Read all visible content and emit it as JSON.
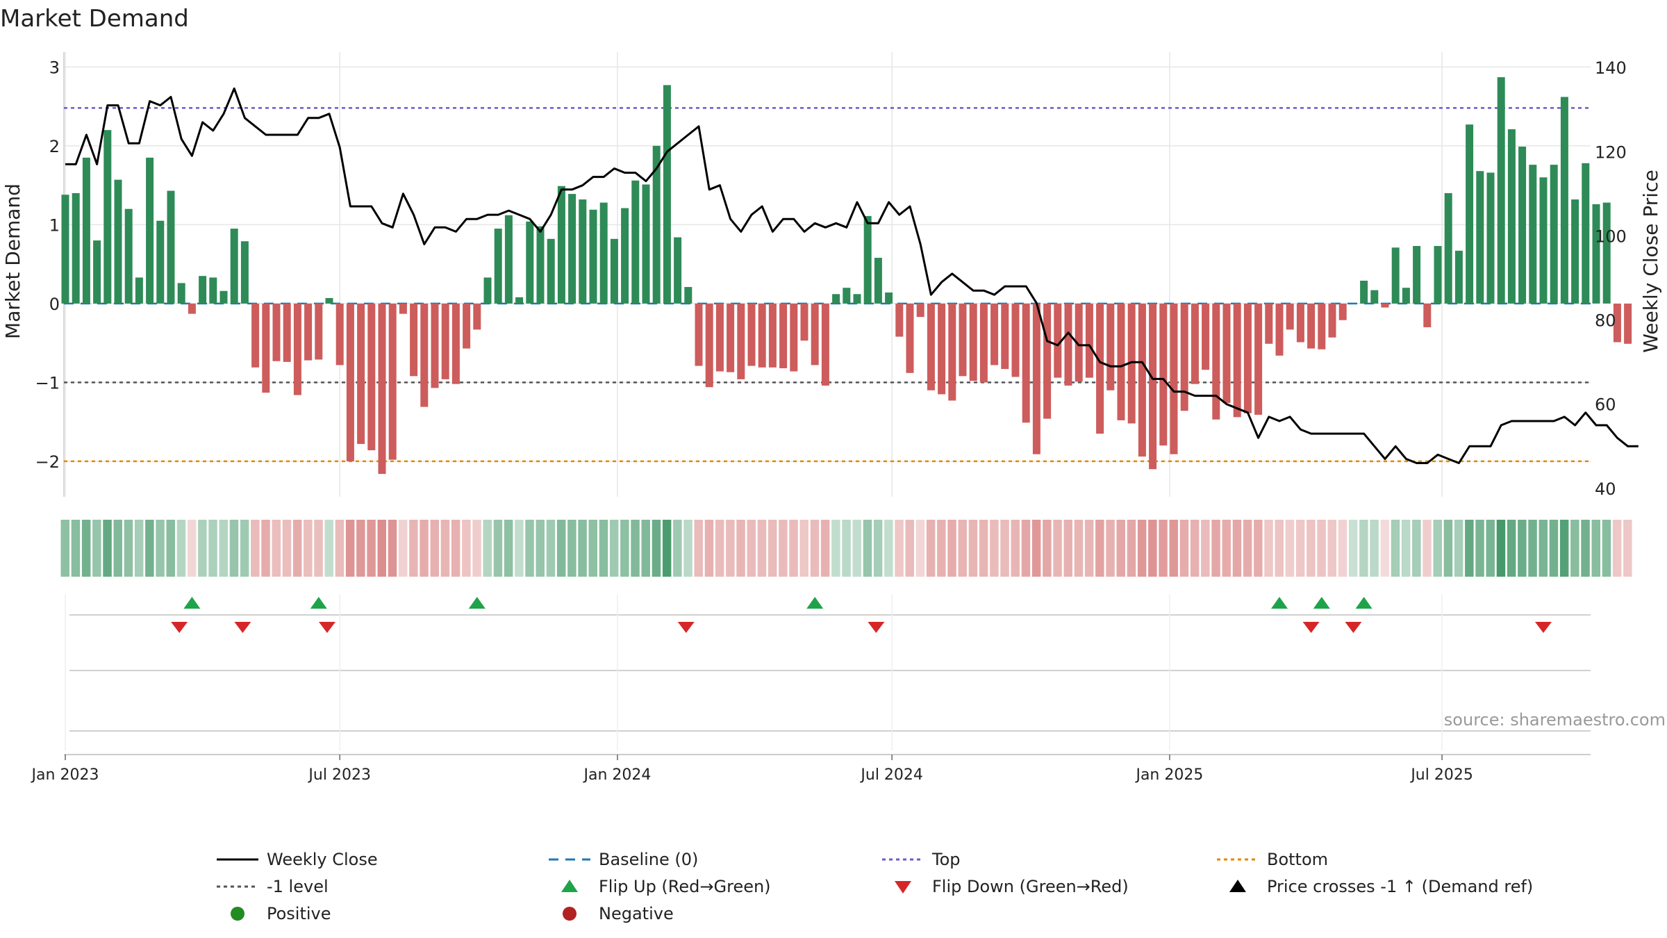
{
  "colors": {
    "positive_bar": "#2e8b57",
    "negative_bar": "#cd5c5c",
    "price_line": "#000000",
    "baseline": "#1f77b4",
    "top_line": "#6a5acd",
    "bottom_line": "#e08a00",
    "minus1_line": "#555555",
    "flip_up": "#1fa34a",
    "flip_down": "#d62728",
    "positive_dot": "#228b22",
    "negative_dot": "#b22222",
    "grid": "#e6e6e6"
  },
  "chart_data": {
    "type": "bar",
    "title": "Market Demand",
    "ylabel_left": "Market Demand",
    "ylabel_right": "Weekly Close Price",
    "ylim_left": [
      -2.45,
      3.1
    ],
    "ylim_right": [
      38,
      142
    ],
    "yticks_left": [
      3,
      2,
      1,
      0,
      -1,
      -2
    ],
    "ytick_labels_left": [
      "3",
      "2",
      "1",
      "0",
      "−1",
      "−2"
    ],
    "yticks_right": [
      140,
      120,
      100,
      80,
      60,
      40
    ],
    "ytick_labels_right": [
      "140",
      "120",
      "100",
      "80",
      "60",
      "40"
    ],
    "x_tick_labels": [
      "Jan 2023",
      "Jul 2023",
      "Jan 2024",
      "Jul 2024",
      "Jan 2025",
      "Jul 2025"
    ],
    "x_tick_weeks": [
      0.0,
      26.0,
      52.3,
      78.3,
      104.6,
      130.4
    ],
    "reference_lines": {
      "baseline": 0,
      "top": 2.48,
      "minus1": -1.0,
      "bottom": -2.0
    },
    "demand": [
      1.38,
      1.4,
      1.85,
      0.8,
      2.2,
      1.57,
      1.2,
      0.33,
      1.85,
      1.05,
      1.43,
      0.26,
      -0.13,
      0.35,
      0.33,
      0.16,
      0.95,
      0.79,
      -0.81,
      -1.13,
      -0.73,
      -0.74,
      -1.16,
      -0.72,
      -0.71,
      0.07,
      -0.78,
      -2.0,
      -1.78,
      -1.86,
      -2.16,
      -1.98,
      -0.13,
      -0.92,
      -1.31,
      -1.07,
      -0.96,
      -1.02,
      -0.57,
      -0.33,
      0.33,
      0.95,
      1.12,
      0.08,
      1.04,
      0.98,
      0.82,
      1.49,
      1.39,
      1.32,
      1.19,
      1.28,
      0.82,
      1.21,
      1.56,
      1.51,
      2.0,
      2.77,
      0.84,
      0.21,
      -0.79,
      -1.06,
      -0.86,
      -0.87,
      -0.96,
      -0.79,
      -0.81,
      -0.81,
      -0.82,
      -0.86,
      -0.47,
      -0.78,
      -1.04,
      0.12,
      0.2,
      0.12,
      1.11,
      0.58,
      0.14,
      -0.42,
      -0.88,
      -0.17,
      -1.1,
      -1.15,
      -1.23,
      -0.92,
      -0.98,
      -1.0,
      -0.78,
      -0.83,
      -0.93,
      -1.51,
      -1.91,
      -1.46,
      -0.94,
      -1.04,
      -0.99,
      -0.94,
      -1.65,
      -1.1,
      -1.48,
      -1.52,
      -1.94,
      -2.1,
      -1.8,
      -1.91,
      -1.36,
      -1.02,
      -0.84,
      -1.47,
      -1.26,
      -1.44,
      -1.39,
      -1.41,
      -0.51,
      -0.66,
      -0.33,
      -0.49,
      -0.57,
      -0.58,
      -0.43,
      -0.21,
      0.0,
      0.29,
      0.17,
      -0.05,
      0.71,
      0.2,
      0.73,
      -0.3,
      0.73,
      1.4,
      0.67,
      2.27,
      1.68,
      1.66,
      2.87,
      2.21,
      1.99,
      1.76,
      1.6,
      1.76,
      2.62,
      1.32,
      1.78,
      1.26,
      1.28,
      -0.49,
      -0.51
    ],
    "close": [
      117,
      117,
      124,
      117,
      131,
      131,
      122,
      122,
      132,
      131,
      133,
      123,
      119,
      127,
      125,
      129,
      135,
      128,
      126,
      124,
      124,
      124,
      124,
      128,
      128,
      129,
      121,
      107,
      107,
      107,
      103,
      102,
      110,
      105,
      98,
      102,
      102,
      101,
      104,
      104,
      105,
      105,
      106,
      105,
      104,
      101,
      105,
      111,
      111,
      112,
      114,
      114,
      116,
      115,
      115,
      113,
      116,
      120,
      122,
      124,
      126,
      111,
      112,
      104,
      101,
      105,
      107,
      101,
      104,
      104,
      101,
      103,
      102,
      103,
      102,
      108,
      103,
      103,
      108,
      105,
      107,
      98,
      86,
      89,
      91,
      89,
      87,
      87,
      86,
      88,
      88,
      88,
      84,
      75,
      74,
      77,
      74,
      74,
      70,
      69,
      69,
      70,
      70,
      66,
      66,
      63,
      63,
      62,
      62,
      62,
      60,
      59,
      58,
      52,
      57,
      56,
      57,
      54,
      53,
      53,
      53,
      53,
      53,
      53,
      50,
      47,
      50,
      47,
      46,
      46,
      48,
      47,
      46,
      50,
      50,
      50,
      55,
      56,
      56,
      56,
      56,
      56,
      57,
      55,
      58,
      55,
      55,
      52,
      50,
      50
    ],
    "heatmap_row": [
      0.45,
      0.5,
      0.65,
      0.4,
      0.75,
      0.55,
      0.45,
      0.3,
      0.65,
      0.4,
      0.5,
      0.2,
      -0.1,
      0.25,
      0.25,
      0.2,
      0.4,
      0.35,
      -0.4,
      -0.55,
      -0.35,
      -0.35,
      -0.55,
      -0.35,
      -0.35,
      0.1,
      -0.4,
      -0.8,
      -0.75,
      -0.75,
      -0.85,
      -0.8,
      -0.15,
      -0.45,
      -0.55,
      -0.5,
      -0.45,
      -0.5,
      -0.3,
      -0.2,
      0.2,
      0.4,
      0.45,
      0.1,
      0.4,
      0.4,
      0.35,
      0.55,
      0.5,
      0.5,
      0.45,
      0.5,
      0.35,
      0.45,
      0.55,
      0.55,
      0.7,
      0.9,
      0.35,
      0.15,
      -0.4,
      -0.5,
      -0.4,
      -0.4,
      -0.45,
      -0.4,
      -0.4,
      -0.4,
      -0.4,
      -0.4,
      -0.25,
      -0.4,
      -0.5,
      0.1,
      0.15,
      0.1,
      0.4,
      0.3,
      0.1,
      -0.25,
      -0.4,
      -0.1,
      -0.5,
      -0.5,
      -0.55,
      -0.45,
      -0.45,
      -0.45,
      -0.4,
      -0.4,
      -0.45,
      -0.6,
      -0.75,
      -0.6,
      -0.45,
      -0.5,
      -0.45,
      -0.45,
      -0.65,
      -0.5,
      -0.6,
      -0.6,
      -0.75,
      -0.8,
      -0.7,
      -0.75,
      -0.55,
      -0.5,
      -0.4,
      -0.6,
      -0.55,
      -0.6,
      -0.55,
      -0.55,
      -0.25,
      -0.3,
      -0.2,
      -0.25,
      -0.3,
      -0.3,
      -0.25,
      -0.15,
      0.05,
      0.2,
      0.15,
      -0.05,
      0.3,
      0.15,
      0.3,
      -0.2,
      0.3,
      0.5,
      0.3,
      0.75,
      0.6,
      0.6,
      0.95,
      0.75,
      0.7,
      0.65,
      0.6,
      0.65,
      0.85,
      0.5,
      0.65,
      0.5,
      0.5,
      -0.25,
      -0.25
    ],
    "flip_up_weeks": [
      12,
      24,
      39,
      71,
      115,
      119,
      123
    ],
    "flip_down_weeks": [
      10.8,
      16.8,
      24.8,
      58.8,
      76.8,
      118,
      122,
      140
    ],
    "source_note": "source: sharemaestro.com",
    "legend": [
      {
        "label": "Weekly Close",
        "kind": "line-solid",
        "color": "#000000"
      },
      {
        "label": "Baseline (0)",
        "kind": "line-dash",
        "color": "#1f77b4"
      },
      {
        "label": "Top",
        "kind": "line-dot",
        "color": "#6a5acd"
      },
      {
        "label": "Bottom",
        "kind": "line-dot",
        "color": "#e08a00"
      },
      {
        "label": "-1 level",
        "kind": "line-dot",
        "color": "#555555"
      },
      {
        "label": "Flip Up (Red→Green)",
        "kind": "tri-up",
        "color": "#1fa34a"
      },
      {
        "label": "Flip Down (Green→Red)",
        "kind": "tri-down",
        "color": "#d62728"
      },
      {
        "label": "Price crosses -1 ↑ (Demand ref)",
        "kind": "tri-up",
        "color": "#000000"
      },
      {
        "label": "Positive",
        "kind": "dot",
        "color": "#228b22"
      },
      {
        "label": "Negative",
        "kind": "dot",
        "color": "#b22222"
      }
    ]
  }
}
